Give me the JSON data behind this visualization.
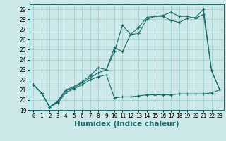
{
  "bg_color": "#cce8e8",
  "line_color": "#1a6b6b",
  "grid_color": "#aad4d4",
  "xlabel": "Humidex (Indice chaleur)",
  "xlabel_fontsize": 7.5,
  "tick_fontsize": 5.5,
  "xlim": [
    -0.5,
    23.5
  ],
  "ylim": [
    19,
    29.5
  ],
  "yticks": [
    19,
    20,
    21,
    22,
    23,
    24,
    25,
    26,
    27,
    28,
    29
  ],
  "xticks": [
    0,
    1,
    2,
    3,
    4,
    5,
    6,
    7,
    8,
    9,
    10,
    11,
    12,
    13,
    14,
    15,
    16,
    17,
    18,
    19,
    20,
    21,
    22,
    23
  ],
  "series1_x": [
    0,
    1,
    2,
    3,
    4,
    5,
    6,
    7,
    8,
    9,
    10,
    11,
    12,
    13,
    14,
    15,
    16,
    17,
    18,
    19,
    20,
    21,
    22,
    23
  ],
  "series1_y": [
    21.5,
    20.7,
    19.3,
    19.7,
    20.7,
    21.1,
    21.5,
    22.0,
    22.3,
    22.5,
    20.2,
    20.3,
    20.3,
    20.4,
    20.5,
    20.5,
    20.5,
    20.5,
    20.6,
    20.6,
    20.6,
    20.6,
    20.7,
    21.0
  ],
  "series2_x": [
    0,
    1,
    2,
    3,
    4,
    5,
    6,
    7,
    8,
    9,
    10,
    11,
    12,
    13,
    14,
    15,
    16,
    17,
    18,
    19,
    20,
    21,
    22,
    23
  ],
  "series2_y": [
    21.5,
    20.7,
    19.3,
    19.9,
    21.0,
    21.3,
    21.8,
    22.4,
    23.2,
    23.0,
    24.8,
    27.4,
    26.5,
    27.2,
    28.2,
    28.3,
    28.3,
    27.9,
    27.7,
    28.1,
    28.2,
    29.0,
    22.9,
    21.0
  ],
  "series3_x": [
    0,
    1,
    2,
    3,
    4,
    5,
    6,
    7,
    8,
    9,
    10,
    11,
    12,
    13,
    14,
    15,
    16,
    17,
    18,
    19,
    20,
    21,
    22,
    23
  ],
  "series3_y": [
    21.5,
    20.7,
    19.3,
    19.8,
    20.9,
    21.2,
    21.7,
    22.2,
    22.7,
    23.0,
    25.2,
    24.8,
    26.5,
    26.6,
    28.0,
    28.3,
    28.4,
    28.7,
    28.3,
    28.3,
    28.1,
    28.5,
    22.9,
    21.0
  ]
}
